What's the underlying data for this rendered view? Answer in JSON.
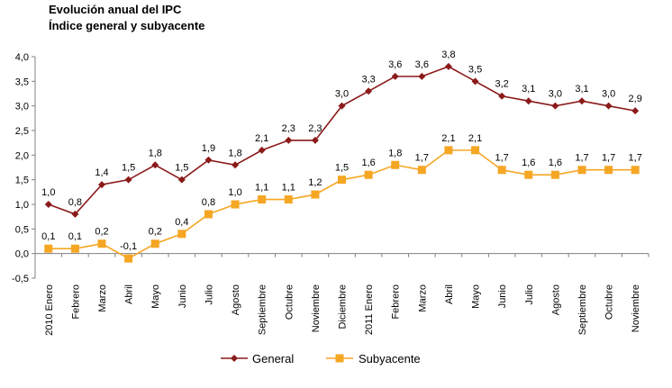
{
  "chart_data": {
    "type": "line",
    "title": "Evolución anual del IPC",
    "subtitle": "Índice general y subyacente",
    "categories": [
      "2010 Enero",
      "Febrero",
      "Marzo",
      "Abril",
      "Mayo",
      "Junio",
      "Julio",
      "Agosto",
      "Septiembre",
      "Octubre",
      "Noviembre",
      "Diciembre",
      "2011 Enero",
      "Febrero",
      "Marzo",
      "Abril",
      "Mayo",
      "Junio",
      "Julio",
      "Agosto",
      "Septiembre",
      "Octubre",
      "Noviembre"
    ],
    "series": [
      {
        "name": "General",
        "color": "#8b1a1a",
        "marker": "diamond",
        "values": [
          1.0,
          0.8,
          1.4,
          1.5,
          1.8,
          1.5,
          1.9,
          1.8,
          2.1,
          2.3,
          2.3,
          3.0,
          3.3,
          3.6,
          3.6,
          3.8,
          3.5,
          3.2,
          3.1,
          3.0,
          3.1,
          3.0,
          2.9
        ],
        "labels": [
          "1,0",
          "0,8",
          "1,4",
          "1,5",
          "1,8",
          "1,5",
          "1,9",
          "1,8",
          "2,1",
          "2,3",
          "2,3",
          "3,0",
          "3,3",
          "3,6",
          "3,6",
          "3,8",
          "3,5",
          "3,2",
          "3,1",
          "3,0",
          "3,1",
          "3,0",
          "2,9"
        ]
      },
      {
        "name": "Subyacente",
        "color": "#f5a623",
        "marker": "square",
        "values": [
          0.1,
          0.1,
          0.2,
          -0.1,
          0.2,
          0.4,
          0.8,
          1.0,
          1.1,
          1.1,
          1.2,
          1.5,
          1.6,
          1.8,
          1.7,
          2.1,
          2.1,
          1.7,
          1.6,
          1.6,
          1.7,
          1.7,
          1.7
        ],
        "labels": [
          "0,1",
          "0,1",
          "0,2",
          "-0,1",
          "0,2",
          "0,4",
          "0,8",
          "1,0",
          "1,1",
          "1,1",
          "1,2",
          "1,5",
          "1,6",
          "1,8",
          "1,7",
          "2,1",
          "2,1",
          "1,7",
          "1,6",
          "1,6",
          "1,7",
          "1,7",
          "1,7"
        ]
      }
    ],
    "ylim": [
      -0.5,
      4.0
    ],
    "yticks": [
      "4,0",
      "3,5",
      "3,0",
      "2,5",
      "2,0",
      "1,5",
      "1,0",
      "0,5",
      "0,0",
      "-0,5"
    ],
    "ytick_values": [
      4.0,
      3.5,
      3.0,
      2.5,
      2.0,
      1.5,
      1.0,
      0.5,
      0.0,
      -0.5
    ],
    "grid": false,
    "legend_position": "bottom"
  }
}
